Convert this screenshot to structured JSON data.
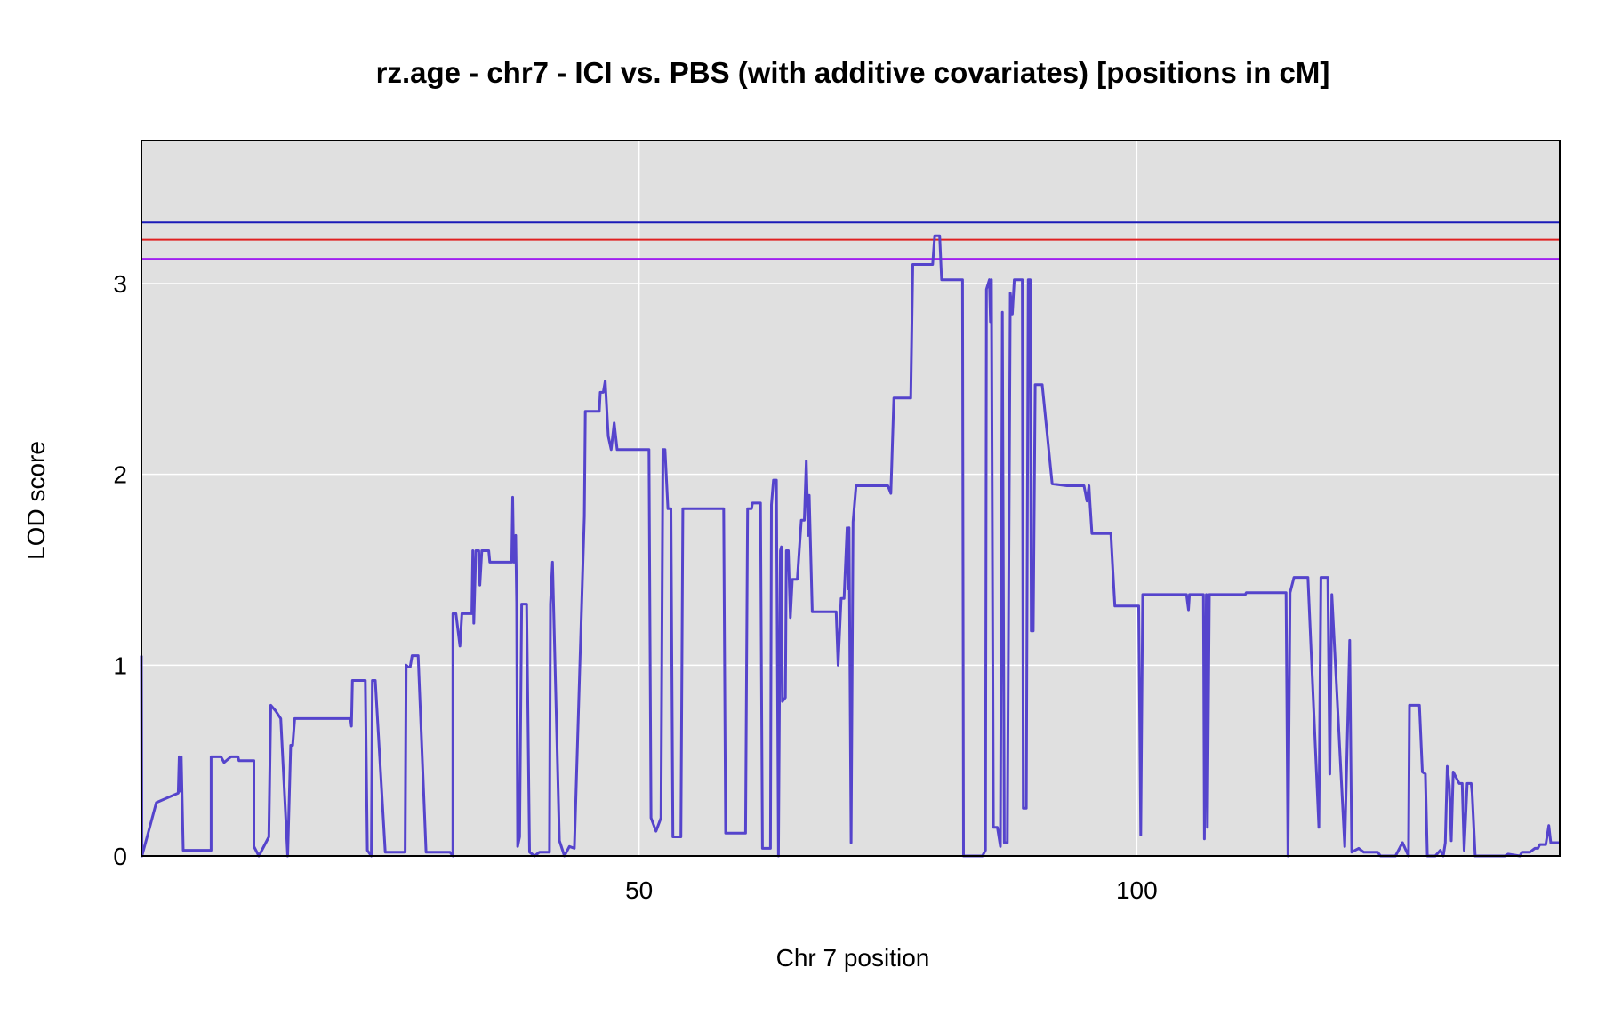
{
  "chart_data": {
    "type": "line",
    "title": "rz.age - chr7 - ICI vs. PBS (with additive covariates) [positions in cM]",
    "xlabel": "Chr 7 position",
    "ylabel": "LOD score",
    "xlim": [
      0,
      142.5
    ],
    "ylim": [
      0,
      3.75
    ],
    "x_ticks": [
      50,
      100
    ],
    "y_ticks": [
      0,
      1,
      2,
      3
    ],
    "grid": true,
    "background": "#e0e0e0",
    "series": [
      {
        "color": "#5544cc",
        "points": [
          [
            0.0,
            1.05
          ],
          [
            0.05,
            0.0
          ],
          [
            1.5,
            0.28
          ],
          [
            3.7,
            0.33
          ],
          [
            3.8,
            0.52
          ],
          [
            3.9,
            0.34
          ],
          [
            4.0,
            0.52
          ],
          [
            4.2,
            0.03
          ],
          [
            7.0,
            0.03
          ],
          [
            7.0,
            0.52
          ],
          [
            8.0,
            0.52
          ],
          [
            8.3,
            0.49
          ],
          [
            9.0,
            0.52
          ],
          [
            9.7,
            0.52
          ],
          [
            9.8,
            0.5
          ],
          [
            11.3,
            0.5
          ],
          [
            11.3,
            0.05
          ],
          [
            11.8,
            0.0
          ],
          [
            12.8,
            0.1
          ],
          [
            13.0,
            0.79
          ],
          [
            13.5,
            0.76
          ],
          [
            14.0,
            0.72
          ],
          [
            14.7,
            0.0
          ],
          [
            15.0,
            0.58
          ],
          [
            15.2,
            0.58
          ],
          [
            15.4,
            0.72
          ],
          [
            21.0,
            0.72
          ],
          [
            21.1,
            0.68
          ],
          [
            21.2,
            0.92
          ],
          [
            22.5,
            0.92
          ],
          [
            22.7,
            0.03
          ],
          [
            23.1,
            0.0
          ],
          [
            23.2,
            0.92
          ],
          [
            23.5,
            0.92
          ],
          [
            24.5,
            0.02
          ],
          [
            25.0,
            0.02
          ],
          [
            26.5,
            0.02
          ],
          [
            26.6,
            1.0
          ],
          [
            26.8,
            0.99
          ],
          [
            27.0,
            0.99
          ],
          [
            27.2,
            1.05
          ],
          [
            27.8,
            1.05
          ],
          [
            28.6,
            0.02
          ],
          [
            30.5,
            0.02
          ],
          [
            31.0,
            0.02
          ],
          [
            31.3,
            0.0
          ],
          [
            31.3,
            1.27
          ],
          [
            31.6,
            1.27
          ],
          [
            32.0,
            1.1
          ],
          [
            32.2,
            1.27
          ],
          [
            33.2,
            1.27
          ],
          [
            33.3,
            1.6
          ],
          [
            33.4,
            1.22
          ],
          [
            33.6,
            1.6
          ],
          [
            33.9,
            1.6
          ],
          [
            34.0,
            1.42
          ],
          [
            34.2,
            1.6
          ],
          [
            34.9,
            1.6
          ],
          [
            35.0,
            1.54
          ],
          [
            37.2,
            1.54
          ],
          [
            37.3,
            1.88
          ],
          [
            37.4,
            1.54
          ],
          [
            37.5,
            1.54
          ],
          [
            37.6,
            1.68
          ],
          [
            37.7,
            1.33
          ],
          [
            37.8,
            0.05
          ],
          [
            38.0,
            0.1
          ],
          [
            38.2,
            1.32
          ],
          [
            38.7,
            1.32
          ],
          [
            39.0,
            0.02
          ],
          [
            39.5,
            0.0
          ],
          [
            40.0,
            0.02
          ],
          [
            41.0,
            0.02
          ],
          [
            41.1,
            1.32
          ],
          [
            41.3,
            1.54
          ],
          [
            42.0,
            0.08
          ],
          [
            42.5,
            0.0
          ],
          [
            43.0,
            0.05
          ],
          [
            43.5,
            0.04
          ],
          [
            44.5,
            1.78
          ],
          [
            44.6,
            2.33
          ],
          [
            46.0,
            2.33
          ],
          [
            46.1,
            2.43
          ],
          [
            46.4,
            2.43
          ],
          [
            46.6,
            2.49
          ],
          [
            46.9,
            2.2
          ],
          [
            47.2,
            2.13
          ],
          [
            47.5,
            2.27
          ],
          [
            47.8,
            2.13
          ],
          [
            51.0,
            2.13
          ],
          [
            51.2,
            0.2
          ],
          [
            51.7,
            0.13
          ],
          [
            52.2,
            0.2
          ],
          [
            52.4,
            2.13
          ],
          [
            52.6,
            2.13
          ],
          [
            52.9,
            1.82
          ],
          [
            53.2,
            1.82
          ],
          [
            53.4,
            0.1
          ],
          [
            54.2,
            0.1
          ],
          [
            54.4,
            1.82
          ],
          [
            56.0,
            1.82
          ],
          [
            56.2,
            1.82
          ],
          [
            58.5,
            1.82
          ],
          [
            58.7,
            0.12
          ],
          [
            60.0,
            0.12
          ],
          [
            60.7,
            0.12
          ],
          [
            60.9,
            1.82
          ],
          [
            61.3,
            1.82
          ],
          [
            61.4,
            1.85
          ],
          [
            62.2,
            1.85
          ],
          [
            62.4,
            0.04
          ],
          [
            63.0,
            0.04
          ],
          [
            63.2,
            0.04
          ],
          [
            63.3,
            1.84
          ],
          [
            63.5,
            1.97
          ],
          [
            63.8,
            1.97
          ],
          [
            64.0,
            0.0
          ],
          [
            64.2,
            1.6
          ],
          [
            64.3,
            1.62
          ],
          [
            64.4,
            0.81
          ],
          [
            64.7,
            0.83
          ],
          [
            64.8,
            1.6
          ],
          [
            65.0,
            1.6
          ],
          [
            65.2,
            1.25
          ],
          [
            65.4,
            1.45
          ],
          [
            65.9,
            1.45
          ],
          [
            66.3,
            1.76
          ],
          [
            66.6,
            1.76
          ],
          [
            66.8,
            2.07
          ],
          [
            67.0,
            1.68
          ],
          [
            67.1,
            1.89
          ],
          [
            67.4,
            1.28
          ],
          [
            69.8,
            1.28
          ],
          [
            70.0,
            1.0
          ],
          [
            70.3,
            1.35
          ],
          [
            70.6,
            1.35
          ],
          [
            70.9,
            1.72
          ],
          [
            71.0,
            1.4
          ],
          [
            71.1,
            1.72
          ],
          [
            71.3,
            0.07
          ],
          [
            71.5,
            1.75
          ],
          [
            71.8,
            1.94
          ],
          [
            75.0,
            1.94
          ],
          [
            75.3,
            1.9
          ],
          [
            75.6,
            2.4
          ],
          [
            77.0,
            2.4
          ],
          [
            77.3,
            2.4
          ],
          [
            77.5,
            3.1
          ],
          [
            79.5,
            3.1
          ],
          [
            79.7,
            3.25
          ],
          [
            80.2,
            3.25
          ],
          [
            80.4,
            3.02
          ],
          [
            82.0,
            3.02
          ],
          [
            82.5,
            3.02
          ],
          [
            82.6,
            0.0
          ],
          [
            84.5,
            0.0
          ],
          [
            84.8,
            0.03
          ],
          [
            84.9,
            2.97
          ],
          [
            85.2,
            3.02
          ],
          [
            85.3,
            2.8
          ],
          [
            85.4,
            3.02
          ],
          [
            85.6,
            0.15
          ],
          [
            86.0,
            0.15
          ],
          [
            86.3,
            0.05
          ],
          [
            86.5,
            2.85
          ],
          [
            86.7,
            0.07
          ],
          [
            87.0,
            0.07
          ],
          [
            87.3,
            2.95
          ],
          [
            87.5,
            2.84
          ],
          [
            87.7,
            3.02
          ],
          [
            88.5,
            3.02
          ],
          [
            88.6,
            0.25
          ],
          [
            88.9,
            0.25
          ],
          [
            89.1,
            3.02
          ],
          [
            89.3,
            3.02
          ],
          [
            89.4,
            1.18
          ],
          [
            89.6,
            1.18
          ],
          [
            89.8,
            2.47
          ],
          [
            90.5,
            2.47
          ],
          [
            91.5,
            1.95
          ],
          [
            93.0,
            1.94
          ],
          [
            93.5,
            1.94
          ],
          [
            94.7,
            1.94
          ],
          [
            95.0,
            1.86
          ],
          [
            95.2,
            1.94
          ],
          [
            95.3,
            1.85
          ],
          [
            95.5,
            1.69
          ],
          [
            97.4,
            1.69
          ],
          [
            97.6,
            1.5
          ],
          [
            97.8,
            1.31
          ],
          [
            100.0,
            1.31
          ],
          [
            100.2,
            1.31
          ],
          [
            100.4,
            0.11
          ],
          [
            100.6,
            1.37
          ],
          [
            101.0,
            1.37
          ],
          [
            105.0,
            1.37
          ],
          [
            105.2,
            1.29
          ],
          [
            105.3,
            1.37
          ],
          [
            106.5,
            1.37
          ],
          [
            106.7,
            1.37
          ],
          [
            106.8,
            0.09
          ],
          [
            107.0,
            1.37
          ],
          [
            107.1,
            0.15
          ],
          [
            107.3,
            1.37
          ],
          [
            110.7,
            1.37
          ],
          [
            110.9,
            1.37
          ],
          [
            111.0,
            1.38
          ],
          [
            114.0,
            1.38
          ],
          [
            115.0,
            1.38
          ],
          [
            115.2,
            0.0
          ],
          [
            115.4,
            1.38
          ],
          [
            115.8,
            1.46
          ],
          [
            117.2,
            1.46
          ],
          [
            118.3,
            0.15
          ],
          [
            118.5,
            1.46
          ],
          [
            119.2,
            1.46
          ],
          [
            119.4,
            0.43
          ],
          [
            119.6,
            1.37
          ],
          [
            120.9,
            0.05
          ],
          [
            121.4,
            1.13
          ],
          [
            121.6,
            0.02
          ],
          [
            122.3,
            0.04
          ],
          [
            122.8,
            0.02
          ],
          [
            124.2,
            0.02
          ],
          [
            124.5,
            0.0
          ],
          [
            126.0,
            0.0
          ],
          [
            126.7,
            0.07
          ],
          [
            127.3,
            0.0
          ],
          [
            127.4,
            0.79
          ],
          [
            128.4,
            0.79
          ],
          [
            128.7,
            0.44
          ],
          [
            129.0,
            0.43
          ],
          [
            129.2,
            0.0
          ],
          [
            130.0,
            0.0
          ],
          [
            130.5,
            0.03
          ],
          [
            130.8,
            0.0
          ],
          [
            131.0,
            0.07
          ],
          [
            131.2,
            0.47
          ],
          [
            131.4,
            0.37
          ],
          [
            131.6,
            0.08
          ],
          [
            131.8,
            0.44
          ],
          [
            132.4,
            0.38
          ],
          [
            132.7,
            0.38
          ],
          [
            132.9,
            0.03
          ],
          [
            133.2,
            0.38
          ],
          [
            133.6,
            0.38
          ],
          [
            133.7,
            0.33
          ],
          [
            134.0,
            0.0
          ],
          [
            136.0,
            0.0
          ],
          [
            137.0,
            0.0
          ],
          [
            137.3,
            0.01
          ],
          [
            138.5,
            0.0
          ],
          [
            138.7,
            0.02
          ],
          [
            139.5,
            0.02
          ],
          [
            140.0,
            0.04
          ],
          [
            140.3,
            0.04
          ],
          [
            140.5,
            0.06
          ],
          [
            141.1,
            0.06
          ],
          [
            141.4,
            0.16
          ],
          [
            141.6,
            0.07
          ],
          [
            142.5,
            0.07
          ],
          [
            143.0,
            0.07
          ],
          [
            144.6,
            0.07
          ],
          [
            144.8,
            0.02
          ],
          [
            145.0,
            0.04
          ],
          [
            145.3,
            0.03
          ],
          [
            146.0,
            0.0
          ],
          [
            147.0,
            0.0
          ],
          [
            148.2,
            0.01
          ],
          [
            149.0,
            0.01
          ],
          [
            149.3,
            0.03
          ],
          [
            149.6,
            0.04
          ]
        ]
      }
    ],
    "threshold_lines": [
      {
        "value": 3.32,
        "color": "#1a1ab8"
      },
      {
        "value": 3.23,
        "color": "#e02020"
      },
      {
        "value": 3.13,
        "color": "#a020f0"
      }
    ]
  }
}
